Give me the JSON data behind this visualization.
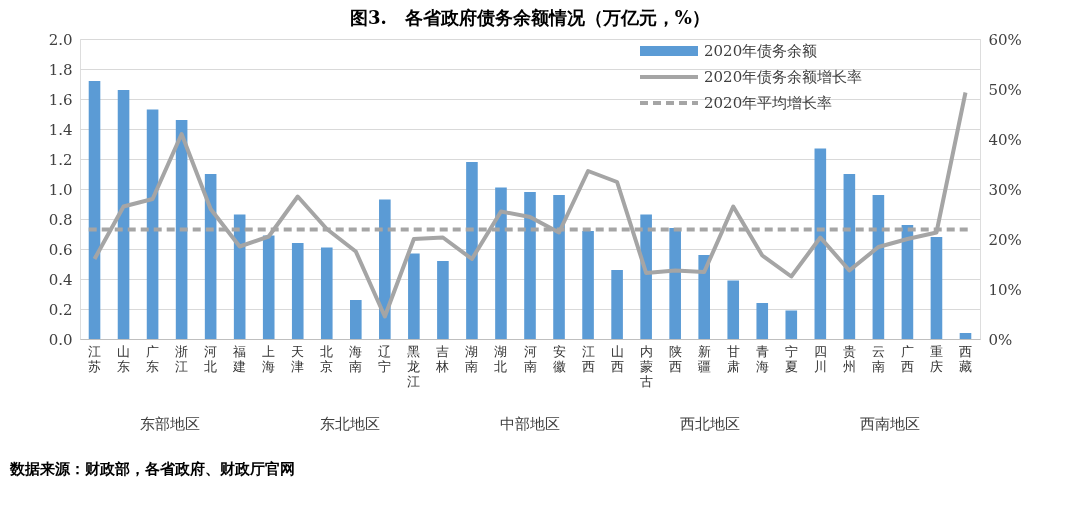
{
  "chart_data": {
    "type": "bar",
    "title": "图3.　各省政府债务余额情况（万亿元，%）",
    "categories": [
      "江苏",
      "山东",
      "广东",
      "浙江",
      "河北",
      "福建",
      "上海",
      "天津",
      "北京",
      "海南",
      "辽宁",
      "黑龙江",
      "吉林",
      "湖南",
      "湖北",
      "河南",
      "安徽",
      "江西",
      "山西",
      "内蒙古",
      "陕西",
      "新疆",
      "甘肃",
      "青海",
      "宁夏",
      "四川",
      "贵州",
      "云南",
      "广西",
      "重庆",
      "西藏"
    ],
    "series": [
      {
        "name": "2020年债务余额",
        "color": "#5b9bd5",
        "values": [
          1.72,
          1.66,
          1.53,
          1.46,
          1.1,
          0.83,
          0.69,
          0.64,
          0.61,
          0.26,
          0.93,
          0.57,
          0.52,
          1.18,
          1.01,
          0.98,
          0.96,
          0.72,
          0.46,
          0.83,
          0.74,
          0.56,
          0.39,
          0.24,
          0.19,
          1.27,
          1.1,
          0.96,
          0.76,
          0.68,
          0.04
        ]
      },
      {
        "name": "2020年债务余额增长率",
        "type": "line",
        "axis": "y2",
        "color": "#a5a5a5",
        "values": [
          16,
          26.5,
          28,
          41,
          26,
          18.5,
          20.5,
          28.5,
          22,
          17.5,
          4.5,
          20,
          20.3,
          16,
          25.5,
          24.4,
          21.3,
          33.6,
          31.4,
          13.2,
          13.7,
          13.4,
          26.5,
          16.7,
          12.5,
          20.3,
          13.7,
          18.4,
          20,
          21.3,
          49.3
        ]
      }
    ],
    "ref_lines": [
      {
        "axis": "y2",
        "value": 21.9,
        "label": "2020年平均增长率",
        "color": "#a5a5a5",
        "line_style": "dashed"
      }
    ],
    "ylim": [
      0,
      2
    ],
    "yticks": [
      {
        "value": 0,
        "label": "0.0"
      },
      {
        "value": 0.2,
        "label": "0.2"
      },
      {
        "value": 0.4,
        "label": "0.4"
      },
      {
        "value": 0.6,
        "label": "0.6"
      },
      {
        "value": 0.8,
        "label": "0.8"
      },
      {
        "value": 1,
        "label": "1.0"
      },
      {
        "value": 1.2,
        "label": "1.2"
      },
      {
        "value": 1.4,
        "label": "1.4"
      },
      {
        "value": 1.6,
        "label": "1.6"
      },
      {
        "value": 1.8,
        "label": "1.8"
      },
      {
        "value": 2,
        "label": "2.0"
      }
    ],
    "y2lim": [
      0,
      60
    ],
    "y2ticks": [
      {
        "value": 0,
        "label": "0%"
      },
      {
        "value": 10,
        "label": "10%"
      },
      {
        "value": 20,
        "label": "20%"
      },
      {
        "value": 30,
        "label": "30%"
      },
      {
        "value": 40,
        "label": "40%"
      },
      {
        "value": 50,
        "label": "50%"
      },
      {
        "value": 60,
        "label": "60%"
      }
    ],
    "grid": "y",
    "legend": "top right",
    "marker": "none",
    "line_style": "solid",
    "annotations": [
      "东部地区",
      "东北地区",
      "中部地区",
      "西北地区",
      "西南地区",
      "数据来源：财政部，各省政府、财政厅官网"
    ]
  }
}
